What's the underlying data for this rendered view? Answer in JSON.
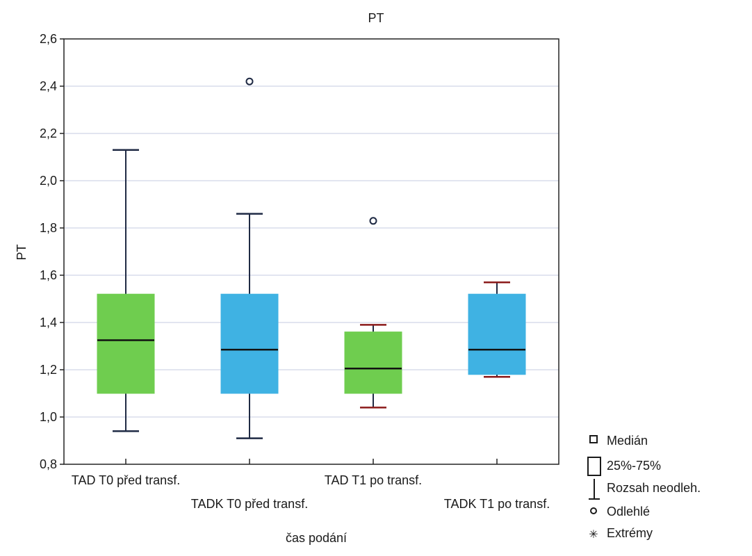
{
  "chart_data": {
    "type": "boxplot",
    "title": "PT",
    "xlabel": "čas podání",
    "ylabel": "PT",
    "ylim": [
      0.8,
      2.6
    ],
    "yticks": [
      0.8,
      1.0,
      1.2,
      1.4,
      1.6,
      1.8,
      2.0,
      2.2,
      2.4,
      2.6
    ],
    "ytick_labels": [
      "0,8",
      "1,0",
      "1,2",
      "1,4",
      "1,6",
      "1,8",
      "2,0",
      "2,2",
      "2,4",
      "2,6"
    ],
    "grid": true,
    "categories": [
      "TAD T0 před transf.",
      "TADK T0 před transf.",
      "TAD T1 po transf.",
      "TADK T1 po transf."
    ],
    "boxes": [
      {
        "category": "TAD T0 před transf.",
        "whisker_low": 0.94,
        "q1": 1.1,
        "median": 1.325,
        "q3": 1.52,
        "whisker_high": 2.13,
        "outliers": [],
        "color": "#6fcd4f"
      },
      {
        "category": "TADK T0 před transf.",
        "whisker_low": 0.91,
        "q1": 1.1,
        "median": 1.285,
        "q3": 1.52,
        "whisker_high": 1.86,
        "outliers": [
          2.42
        ],
        "color": "#3fb2e3"
      },
      {
        "category": "TAD T1 po transf.",
        "whisker_low": 1.04,
        "q1": 1.1,
        "median": 1.205,
        "q3": 1.36,
        "whisker_high": 1.39,
        "outliers": [
          1.83
        ],
        "color": "#6fcd4f"
      },
      {
        "category": "TADK T1 po transf.",
        "whisker_low": 1.17,
        "q1": 1.18,
        "median": 1.285,
        "q3": 1.52,
        "whisker_high": 1.57,
        "outliers": [],
        "color": "#3fb2e3"
      }
    ],
    "legend": {
      "position": "bottom-right",
      "items": [
        {
          "symbol": "median",
          "label": "Medián"
        },
        {
          "symbol": "box",
          "label": "25%-75%"
        },
        {
          "symbol": "whisker",
          "label": "Rozsah neodleh."
        },
        {
          "symbol": "outlier",
          "label": "Odlehlé"
        },
        {
          "symbol": "extreme",
          "label": "Extrémy"
        }
      ]
    }
  }
}
